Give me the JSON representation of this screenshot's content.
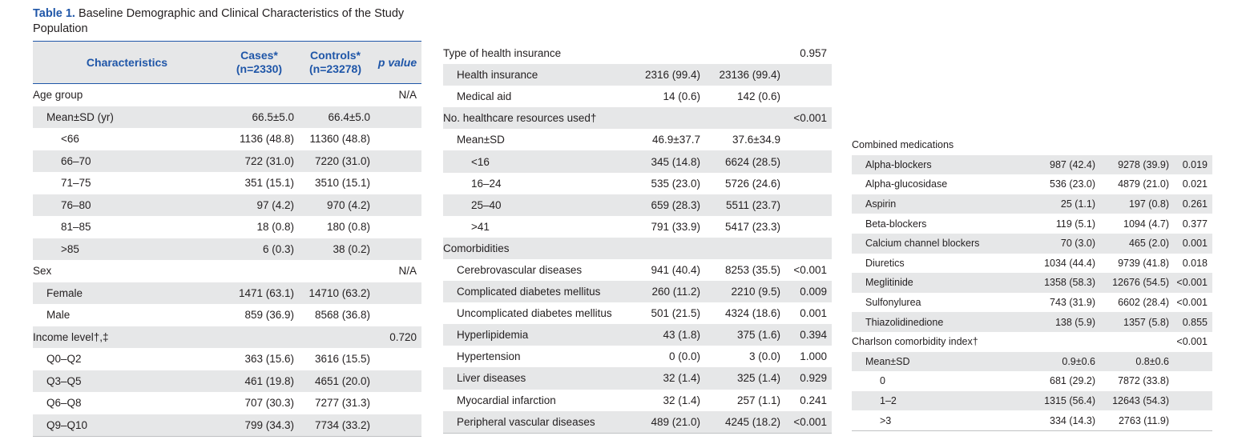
{
  "title": {
    "label": "Table 1.",
    "text": " Baseline Demographic and Clinical Characteristics of the Study Population"
  },
  "colors": {
    "accent": "#1f56a8",
    "shade": "#e6e7e8",
    "text": "#231f20"
  },
  "header": {
    "characteristics": "Characteristics",
    "cases": "Cases*",
    "cases_n": "(n=2330)",
    "controls": "Controls*",
    "controls_n": "(n=23278)",
    "pvalue": "p value"
  },
  "panel1": {
    "rows": [
      {
        "label": "Age group",
        "cases": "",
        "controls": "",
        "p": "N/A",
        "indent": 0,
        "shade": false
      },
      {
        "label": "Mean±SD (yr)",
        "cases": "66.5±5.0",
        "controls": "66.4±5.0",
        "p": "",
        "indent": 1,
        "shade": true
      },
      {
        "label": "<66",
        "cases": "1136 (48.8)",
        "controls": "11360 (48.8)",
        "p": "",
        "indent": 2,
        "shade": false
      },
      {
        "label": "66–70",
        "cases": "722 (31.0)",
        "controls": "7220 (31.0)",
        "p": "",
        "indent": 2,
        "shade": true
      },
      {
        "label": "71–75",
        "cases": "351 (15.1)",
        "controls": "3510 (15.1)",
        "p": "",
        "indent": 2,
        "shade": false
      },
      {
        "label": "76–80",
        "cases": "97 (4.2)",
        "controls": "970 (4.2)",
        "p": "",
        "indent": 2,
        "shade": true
      },
      {
        "label": "81–85",
        "cases": "18 (0.8)",
        "controls": "180 (0.8)",
        "p": "",
        "indent": 2,
        "shade": false
      },
      {
        "label": ">85",
        "cases": "6 (0.3)",
        "controls": "38 (0.2)",
        "p": "",
        "indent": 2,
        "shade": true
      },
      {
        "label": "Sex",
        "cases": "",
        "controls": "",
        "p": "N/A",
        "indent": 0,
        "shade": false
      },
      {
        "label": "Female",
        "cases": "1471 (63.1)",
        "controls": "14710 (63.2)",
        "p": "",
        "indent": 1,
        "shade": true
      },
      {
        "label": "Male",
        "cases": "859 (36.9)",
        "controls": "8568 (36.8)",
        "p": "",
        "indent": 1,
        "shade": false
      },
      {
        "label": "Income level†,‡",
        "cases": "",
        "controls": "",
        "p": "0.720",
        "indent": 0,
        "shade": true
      },
      {
        "label": "Q0–Q2",
        "cases": "363 (15.6)",
        "controls": "3616 (15.5)",
        "p": "",
        "indent": 1,
        "shade": false
      },
      {
        "label": "Q3–Q5",
        "cases": "461 (19.8)",
        "controls": "4651 (20.0)",
        "p": "",
        "indent": 1,
        "shade": true
      },
      {
        "label": "Q6–Q8",
        "cases": "707 (30.3)",
        "controls": "7277 (31.3)",
        "p": "",
        "indent": 1,
        "shade": false
      },
      {
        "label": "Q9–Q10",
        "cases": "799 (34.3)",
        "controls": "7734 (33.2)",
        "p": "",
        "indent": 1,
        "shade": true
      }
    ]
  },
  "panel2": {
    "rows": [
      {
        "label": "Type of health insurance",
        "cases": "",
        "controls": "",
        "p": "0.957",
        "indent": 0,
        "shade": false
      },
      {
        "label": "Health insurance",
        "cases": "2316 (99.4)",
        "controls": "23136 (99.4)",
        "p": "",
        "indent": 1,
        "shade": true
      },
      {
        "label": "Medical aid",
        "cases": "14 (0.6)",
        "controls": "142 (0.6)",
        "p": "",
        "indent": 1,
        "shade": false
      },
      {
        "label": "No. healthcare resources used†",
        "cases": "",
        "controls": "",
        "p": "<0.001",
        "indent": 0,
        "shade": true
      },
      {
        "label": "Mean±SD",
        "cases": "46.9±37.7",
        "controls": "37.6±34.9",
        "p": "",
        "indent": 1,
        "shade": false
      },
      {
        "label": "<16",
        "cases": "345 (14.8)",
        "controls": "6624 (28.5)",
        "p": "",
        "indent": 2,
        "shade": true
      },
      {
        "label": "16–24",
        "cases": "535 (23.0)",
        "controls": "5726 (24.6)",
        "p": "",
        "indent": 2,
        "shade": false
      },
      {
        "label": "25–40",
        "cases": "659 (28.3)",
        "controls": "5511 (23.7)",
        "p": "",
        "indent": 2,
        "shade": true
      },
      {
        "label": ">41",
        "cases": "791 (33.9)",
        "controls": "5417 (23.3)",
        "p": "",
        "indent": 2,
        "shade": false
      },
      {
        "label": "Comorbidities",
        "cases": "",
        "controls": "",
        "p": "",
        "indent": 0,
        "shade": true
      },
      {
        "label": "Cerebrovascular diseases",
        "cases": "941 (40.4)",
        "controls": "8253 (35.5)",
        "p": "<0.001",
        "indent": 1,
        "shade": false
      },
      {
        "label": "Complicated diabetes mellitus",
        "cases": "260 (11.2)",
        "controls": "2210 (9.5)",
        "p": "0.009",
        "indent": 1,
        "shade": true
      },
      {
        "label": "Uncomplicated diabetes mellitus",
        "cases": "501 (21.5)",
        "controls": "4324 (18.6)",
        "p": "0.001",
        "indent": 1,
        "shade": false
      },
      {
        "label": "Hyperlipidemia",
        "cases": "43 (1.8)",
        "controls": "375 (1.6)",
        "p": "0.394",
        "indent": 1,
        "shade": true
      },
      {
        "label": "Hypertension",
        "cases": "0 (0.0)",
        "controls": "3 (0.0)",
        "p": "1.000",
        "indent": 1,
        "shade": false
      },
      {
        "label": "Liver diseases",
        "cases": "32 (1.4)",
        "controls": "325 (1.4)",
        "p": "0.929",
        "indent": 1,
        "shade": true
      },
      {
        "label": "Myocardial infarction",
        "cases": "32 (1.4)",
        "controls": "257 (1.1)",
        "p": "0.241",
        "indent": 1,
        "shade": false
      },
      {
        "label": "Peripheral vascular diseases",
        "cases": "489 (21.0)",
        "controls": "4245 (18.2)",
        "p": "<0.001",
        "indent": 1,
        "shade": true
      }
    ]
  },
  "panel3": {
    "rows": [
      {
        "label": "Combined medications",
        "cases": "",
        "controls": "",
        "p": "",
        "indent": 0,
        "shade": false
      },
      {
        "label": "Alpha-blockers",
        "cases": "987 (42.4)",
        "controls": "9278 (39.9)",
        "p": "0.019",
        "indent": 1,
        "shade": true
      },
      {
        "label": "Alpha-glucosidase",
        "cases": "536 (23.0)",
        "controls": "4879 (21.0)",
        "p": "0.021",
        "indent": 1,
        "shade": false
      },
      {
        "label": "Aspirin",
        "cases": "25 (1.1)",
        "controls": "197 (0.8)",
        "p": "0.261",
        "indent": 1,
        "shade": true
      },
      {
        "label": "Beta-blockers",
        "cases": "119 (5.1)",
        "controls": "1094 (4.7)",
        "p": "0.377",
        "indent": 1,
        "shade": false
      },
      {
        "label": "Calcium channel blockers",
        "cases": "70 (3.0)",
        "controls": "465 (2.0)",
        "p": "0.001",
        "indent": 1,
        "shade": true
      },
      {
        "label": "Diuretics",
        "cases": "1034 (44.4)",
        "controls": "9739 (41.8)",
        "p": "0.018",
        "indent": 1,
        "shade": false
      },
      {
        "label": "Meglitinide",
        "cases": "1358 (58.3)",
        "controls": "12676 (54.5)",
        "p": "<0.001",
        "indent": 1,
        "shade": true
      },
      {
        "label": "Sulfonylurea",
        "cases": "743 (31.9)",
        "controls": "6602 (28.4)",
        "p": "<0.001",
        "indent": 1,
        "shade": false
      },
      {
        "label": "Thiazolidinedione",
        "cases": "138 (5.9)",
        "controls": "1357 (5.8)",
        "p": "0.855",
        "indent": 1,
        "shade": true
      },
      {
        "label": "Charlson comorbidity index†",
        "cases": "",
        "controls": "",
        "p": "<0.001",
        "indent": 0,
        "shade": false
      },
      {
        "label": "Mean±SD",
        "cases": "0.9±0.6",
        "controls": "0.8±0.6",
        "p": "",
        "indent": 1,
        "shade": true
      },
      {
        "label": "0",
        "cases": "681 (29.2)",
        "controls": "7872 (33.8)",
        "p": "",
        "indent": 2,
        "shade": false
      },
      {
        "label": "1–2",
        "cases": "1315 (56.4)",
        "controls": "12643 (54.3)",
        "p": "",
        "indent": 2,
        "shade": true
      },
      {
        "label": ">3",
        "cases": "334 (14.3)",
        "controls": "2763 (11.9)",
        "p": "",
        "indent": 2,
        "shade": false
      }
    ]
  }
}
